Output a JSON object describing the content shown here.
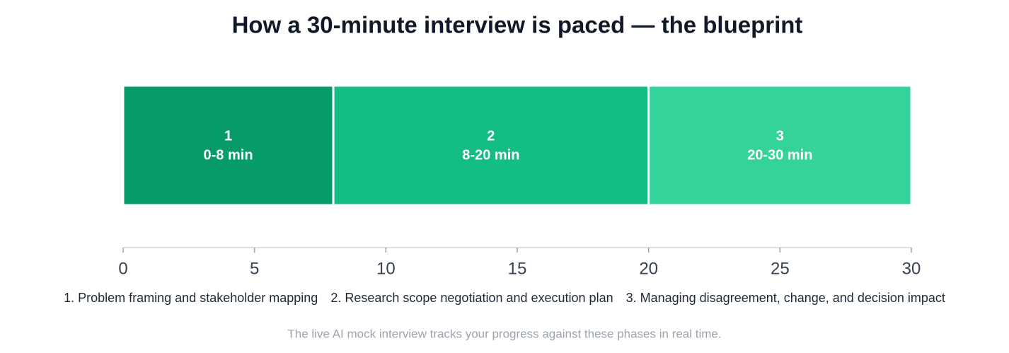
{
  "chart_data": {
    "type": "stacked-timeline",
    "title": "How a 30-minute interview is paced — the blueprint",
    "segments": [
      {
        "name": "1",
        "range_label": "0-8 min",
        "value": 8,
        "color": "#079a6b",
        "legend": "1. Problem framing and stakeholder mapping"
      },
      {
        "name": "2",
        "range_label": "8-20 min",
        "value": 12,
        "color": "#13bd85",
        "legend": "2. Research scope negotiation and execution plan"
      },
      {
        "name": "3",
        "range_label": "20-30 min",
        "value": 10,
        "color": "#34d399",
        "legend": "3. Managing disagreement, change, and decision impact"
      }
    ],
    "xlim": [
      0,
      30
    ],
    "xticks": [
      0,
      5,
      10,
      15,
      20,
      25,
      30
    ],
    "note": "The live AI mock interview tracks your progress against these phases in real time."
  }
}
